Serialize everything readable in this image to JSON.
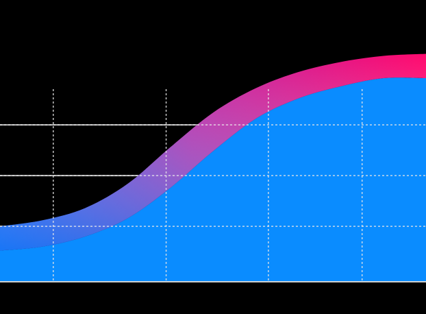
{
  "chart_data": {
    "type": "area",
    "x": [
      0,
      0.1,
      0.2,
      0.3,
      0.4,
      0.5,
      0.6,
      0.7,
      0.8,
      0.9,
      1.0
    ],
    "band_upper": [
      0.27,
      0.3,
      0.36,
      0.48,
      0.66,
      0.83,
      0.95,
      1.03,
      1.08,
      1.11,
      1.12
    ],
    "band_lower": [
      0.15,
      0.17,
      0.22,
      0.31,
      0.46,
      0.64,
      0.8,
      0.9,
      0.96,
      1.0,
      1.0
    ],
    "xlim": [
      0,
      1
    ],
    "ylim": [
      0,
      1.25
    ],
    "y_gridlines": [
      0.27,
      0.52,
      0.77
    ],
    "x_gridlines": [
      0.125,
      0.39,
      0.63,
      0.85
    ],
    "grid": true,
    "x_tick_labels": [
      "",
      "",
      "",
      ""
    ],
    "colors": {
      "fill": "#0a8cff",
      "band_low": "#2a5cff",
      "band_high": "#ff0a78",
      "grid_solid": "#bdbdbd",
      "grid_dashed": "#e6e6e6",
      "background": "#000000"
    }
  }
}
